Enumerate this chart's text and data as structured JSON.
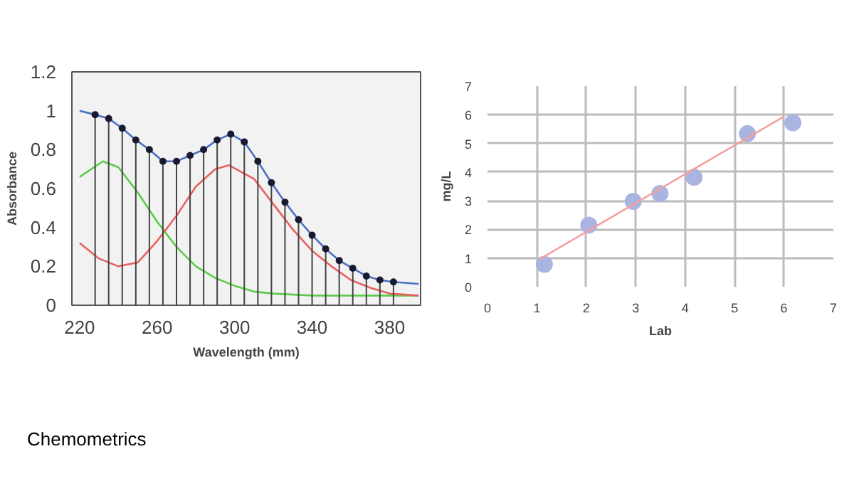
{
  "chart_data": [
    {
      "type": "line",
      "xlabel": "Wavelength (mm)",
      "ylabel": "Absorbance",
      "xlim": [
        216,
        396
      ],
      "xticks": [
        220,
        260,
        300,
        340,
        380
      ],
      "ylim": [
        0,
        1.2
      ],
      "yticks": [
        0,
        0.2,
        0.4,
        0.6,
        0.8,
        1,
        1.2
      ],
      "grid": false,
      "series": [
        {
          "color": "#4a6fc4",
          "x": [
            220,
            228,
            235,
            242,
            249,
            256,
            263,
            270,
            277,
            284,
            291,
            298,
            305,
            312,
            319,
            326,
            333,
            340,
            347,
            354,
            361,
            368,
            375,
            382,
            395
          ],
          "values": [
            1.0,
            0.98,
            0.96,
            0.91,
            0.85,
            0.8,
            0.74,
            0.74,
            0.77,
            0.8,
            0.85,
            0.88,
            0.84,
            0.74,
            0.63,
            0.53,
            0.44,
            0.36,
            0.29,
            0.23,
            0.19,
            0.15,
            0.13,
            0.12,
            0.11
          ]
        },
        {
          "color": "#5ccc4a",
          "x": [
            220,
            232,
            240,
            250,
            260,
            270,
            280,
            290,
            300,
            310,
            320,
            340,
            360,
            380,
            395
          ],
          "values": [
            0.66,
            0.74,
            0.71,
            0.58,
            0.43,
            0.3,
            0.2,
            0.14,
            0.1,
            0.07,
            0.06,
            0.05,
            0.05,
            0.05,
            0.05
          ]
        },
        {
          "color": "#e8615f",
          "x": [
            220,
            230,
            240,
            250,
            260,
            270,
            280,
            290,
            297,
            310,
            320,
            330,
            340,
            350,
            360,
            370,
            380,
            395
          ],
          "values": [
            0.32,
            0.24,
            0.2,
            0.22,
            0.33,
            0.46,
            0.61,
            0.7,
            0.72,
            0.65,
            0.52,
            0.39,
            0.28,
            0.2,
            0.13,
            0.09,
            0.06,
            0.05
          ]
        },
        {
          "type": "lollipop",
          "color": "#1a1a2e",
          "x": [
            228,
            235,
            242,
            249,
            256,
            263,
            270,
            277,
            284,
            291,
            298,
            305,
            312,
            319,
            326,
            333,
            340,
            347,
            354,
            361,
            368,
            375,
            382
          ],
          "values": [
            0.98,
            0.96,
            0.91,
            0.85,
            0.8,
            0.74,
            0.74,
            0.77,
            0.8,
            0.85,
            0.88,
            0.84,
            0.74,
            0.63,
            0.53,
            0.44,
            0.36,
            0.29,
            0.23,
            0.19,
            0.15,
            0.13,
            0.12
          ]
        }
      ],
      "annotations": [
        "Chemometrics"
      ]
    },
    {
      "type": "scatter",
      "xlabel": "Lab",
      "ylabel": "mg/L",
      "xlim": [
        0,
        7
      ],
      "xticks": [
        0,
        1,
        2,
        3,
        4,
        5,
        6,
        7
      ],
      "ylim": [
        0,
        7
      ],
      "yticks": [
        0,
        1,
        2,
        3,
        4,
        5,
        6,
        7
      ],
      "grid": true,
      "series": [
        {
          "marker": "circle",
          "color": "#aab4e0",
          "x": [
            1.15,
            2.05,
            2.95,
            3.49,
            4.18,
            5.26,
            6.18
          ],
          "values": [
            0.78,
            2.15,
            2.98,
            3.25,
            3.82,
            5.34,
            5.72
          ]
        },
        {
          "type": "line",
          "color": "#f4a0a0",
          "x": [
            1.06,
            6.01
          ],
          "values": [
            0.97,
            5.95
          ]
        }
      ]
    }
  ]
}
